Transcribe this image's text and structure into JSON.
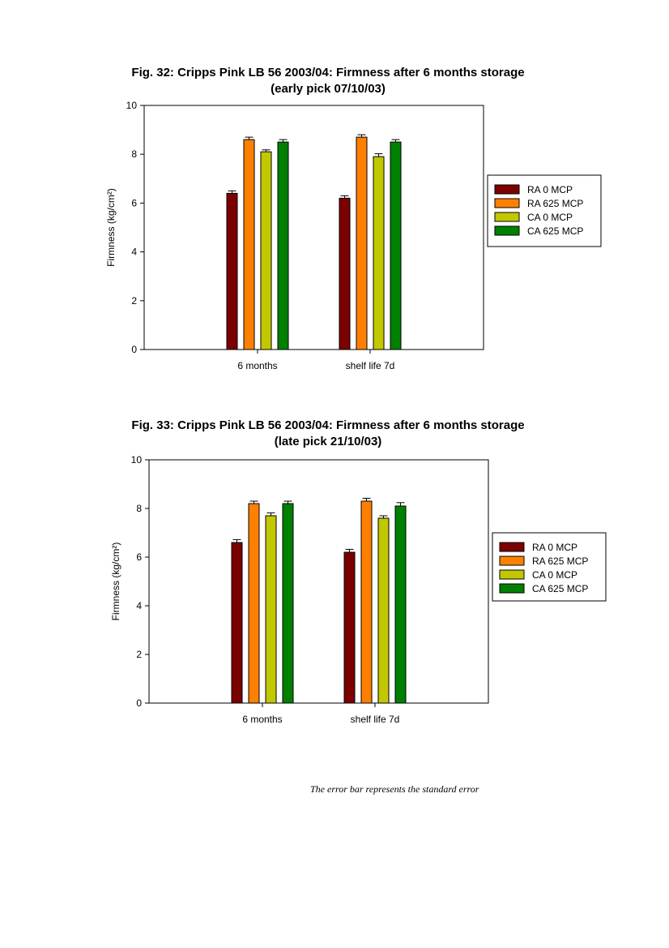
{
  "footnote": "The error bar represents the standard error",
  "chart_data": [
    {
      "type": "bar",
      "title_line1": "Fig. 32: Cripps Pink LB 56 2003/04: Firmness after 6 months storage",
      "title_line2": "(early pick 07/10/03)",
      "ylabel": "Firmness (kg/cm²)",
      "ylim": [
        0,
        10
      ],
      "yticks": [
        "0",
        "2",
        "4",
        "6",
        "8",
        "10"
      ],
      "categories": [
        "6 months",
        "shelf life 7d"
      ],
      "legend_position": "right",
      "grid": false,
      "series": [
        {
          "name": "RA 0 MCP",
          "color": "#7b0000",
          "values": [
            6.4,
            6.2
          ],
          "errors": [
            0.1,
            0.1
          ]
        },
        {
          "name": "RA 625 MCP",
          "color": "#ff8000",
          "values": [
            8.6,
            8.7
          ],
          "errors": [
            0.1,
            0.1
          ]
        },
        {
          "name": "CA 0 MCP",
          "color": "#c2c800",
          "values": [
            8.1,
            7.9
          ],
          "errors": [
            0.08,
            0.12
          ]
        },
        {
          "name": "CA 625 MCP",
          "color": "#008000",
          "values": [
            8.5,
            8.5
          ],
          "errors": [
            0.1,
            0.1
          ]
        }
      ]
    },
    {
      "type": "bar",
      "title_line1": "Fig. 33: Cripps Pink LB 56 2003/04: Firmness after 6 months storage",
      "title_line2": "(late pick 21/10/03)",
      "ylabel": "Firmness (kg/cm²)",
      "ylim": [
        0,
        10
      ],
      "yticks": [
        "0",
        "2",
        "4",
        "6",
        "8",
        "10"
      ],
      "categories": [
        "6 months",
        "shelf life 7d"
      ],
      "legend_position": "right",
      "grid": false,
      "series": [
        {
          "name": "RA 0 MCP",
          "color": "#7b0000",
          "values": [
            6.6,
            6.2
          ],
          "errors": [
            0.12,
            0.12
          ]
        },
        {
          "name": "RA 625 MCP",
          "color": "#ff8000",
          "values": [
            8.2,
            8.3
          ],
          "errors": [
            0.1,
            0.12
          ]
        },
        {
          "name": "CA 0 MCP",
          "color": "#c2c800",
          "values": [
            7.7,
            7.6
          ],
          "errors": [
            0.12,
            0.1
          ]
        },
        {
          "name": "CA 625 MCP",
          "color": "#008000",
          "values": [
            8.2,
            8.1
          ],
          "errors": [
            0.1,
            0.14
          ]
        }
      ]
    }
  ]
}
